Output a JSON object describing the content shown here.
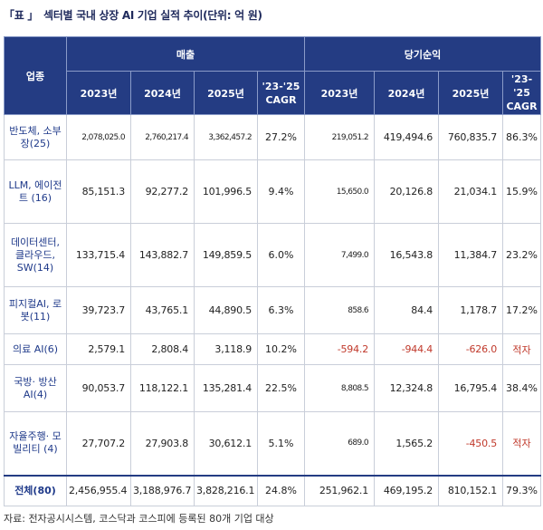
{
  "title": {
    "bracket": "「표 」",
    "text": "섹터별 국내 상장 AI 기업 실적 추이(단위: 억 원)"
  },
  "header": {
    "sector_label": "업종",
    "group_sales": "매출",
    "group_profit": "당기순익",
    "cols": [
      "2023년",
      "2024년",
      "2025년",
      "'23-'25 CAGR",
      "2023년",
      "2024년",
      "2025년",
      "'23-'25 CAGR"
    ]
  },
  "rows": [
    {
      "sector": "반도체, 소부장(25)",
      "cells": [
        "2,078,025.0",
        "2,760,217.4",
        "3,362,457.2",
        "27.2%",
        "219,051.2",
        "419,494.6",
        "760,835.7",
        "86.3%"
      ]
    },
    {
      "sector": "LLM, 에이전트 (16)",
      "cells": [
        "85,151.3",
        "92,277.2",
        "101,996.5",
        "9.4%",
        "15,650.0",
        "20,126.8",
        "21,034.1",
        "15.9%"
      ]
    },
    {
      "sector": "데이터센터, 클라우드, SW(14)",
      "cells": [
        "133,715.4",
        "143,882.7",
        "149,859.5",
        "6.0%",
        "7,499.0",
        "16,543.8",
        "11,384.7",
        "23.2%"
      ]
    },
    {
      "sector": "피지컬AI, 로봇(11)",
      "cells": [
        "39,723.7",
        "43,765.1",
        "44,890.5",
        "6.3%",
        "858.6",
        "84.4",
        "1,178.7",
        "17.2%"
      ]
    },
    {
      "sector": "의료 AI(6)",
      "cells": [
        "2,579.1",
        "2,808.4",
        "3,118.9",
        "10.2%",
        "-594.2",
        "-944.4",
        "-626.0",
        "적자"
      ]
    },
    {
      "sector": "국방· 방산AI(4)",
      "cells": [
        "90,053.7",
        "118,122.1",
        "135,281.4",
        "22.5%",
        "8,808.5",
        "12,324.8",
        "16,795.4",
        "38.4%"
      ]
    },
    {
      "sector": "자율주행· 모빌리티 (4)",
      "cells": [
        "27,707.2",
        "27,903.8",
        "30,612.1",
        "5.1%",
        "689.0",
        "1,565.2",
        "-450.5",
        "적자"
      ]
    },
    {
      "sector": "전체(80)",
      "cells": [
        "2,456,955.4",
        "3,188,976.7",
        "3,828,216.1",
        "24.8%",
        "251,962.1",
        "469,195.2",
        "810,152.1",
        "79.3%"
      ]
    }
  ],
  "negative_cells": [
    [
      4,
      4
    ],
    [
      4,
      5
    ],
    [
      4,
      6
    ],
    [
      4,
      7
    ],
    [
      6,
      6
    ],
    [
      6,
      7
    ]
  ],
  "small_cells": [
    [
      0,
      0
    ],
    [
      0,
      1
    ],
    [
      0,
      2
    ],
    [
      0,
      4
    ],
    [
      1,
      4
    ],
    [
      2,
      4
    ],
    [
      3,
      4
    ],
    [
      5,
      4
    ],
    [
      6,
      4
    ]
  ],
  "source": "자료: 전자공시시스템, 코스닥과 코스피에 등록된 80개 기업 대상",
  "colors": {
    "header_bg": "#243c83",
    "sector_text": "#1f3a8a",
    "negative": "#c0392b"
  }
}
